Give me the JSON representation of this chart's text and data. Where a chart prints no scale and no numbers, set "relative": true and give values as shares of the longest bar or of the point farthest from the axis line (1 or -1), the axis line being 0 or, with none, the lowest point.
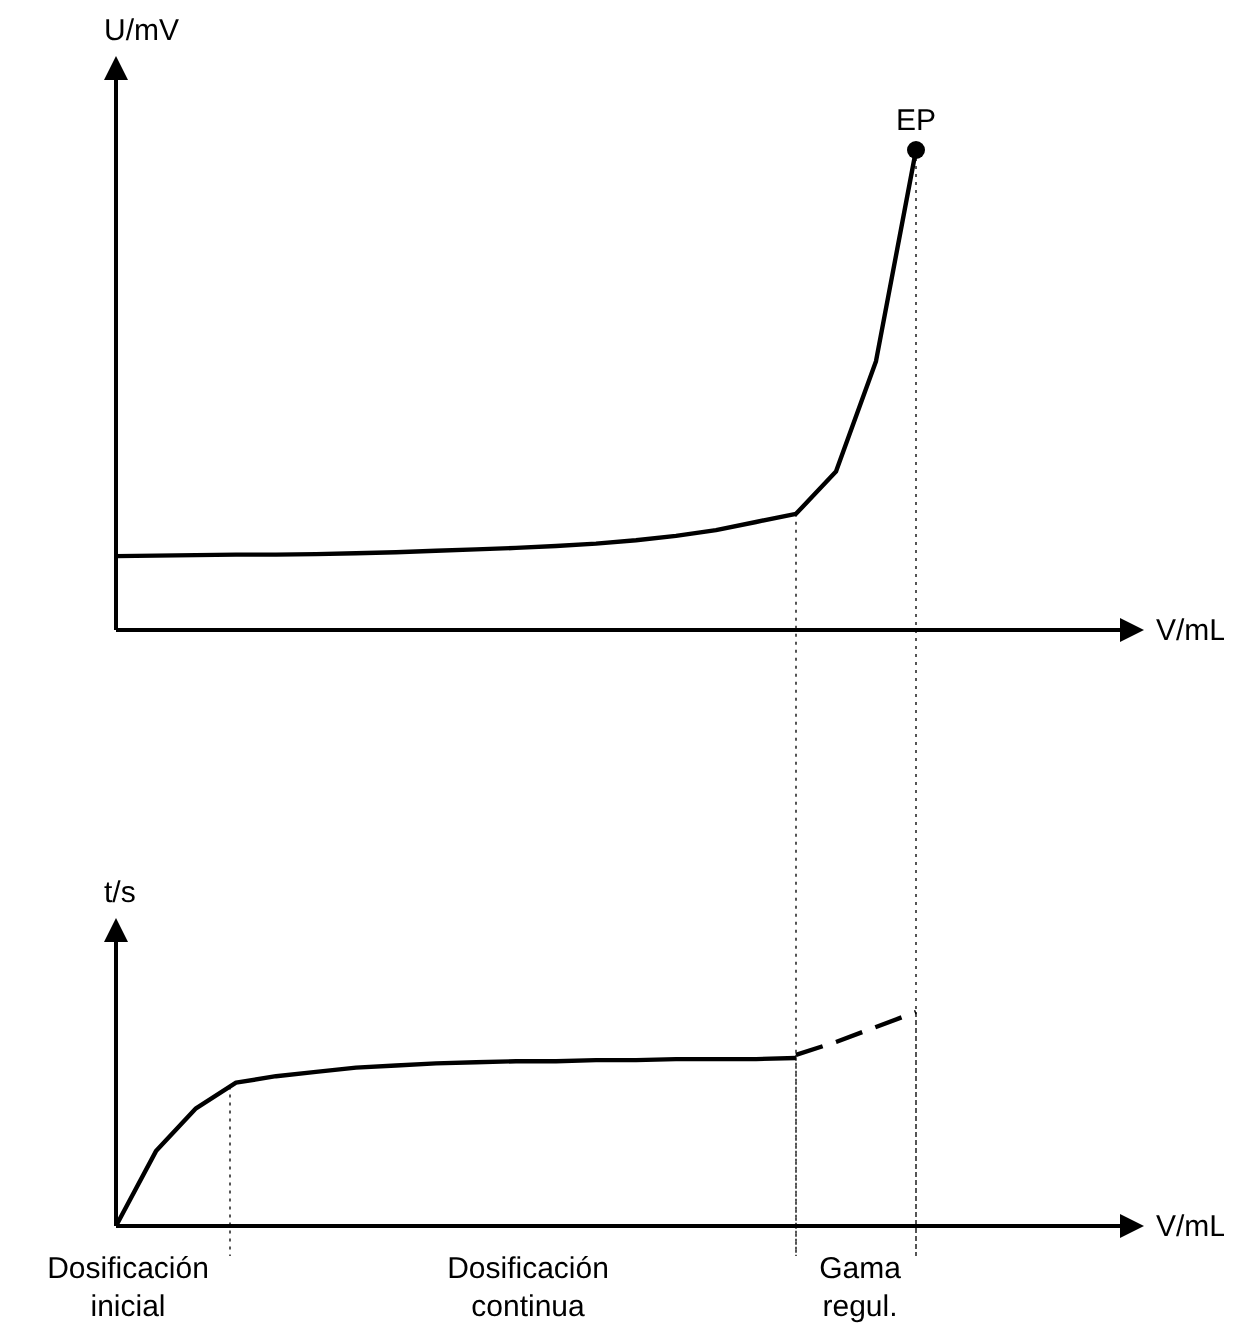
{
  "chart_data": [
    {
      "type": "line",
      "relative": true,
      "ylabel": "U/mV",
      "xlabel": "V/mL",
      "categories": [
        null,
        null,
        null,
        null,
        null,
        null,
        null,
        null,
        null,
        null,
        null,
        null,
        null,
        null,
        null,
        null,
        null,
        null,
        null,
        null,
        null,
        null,
        null,
        null,
        null
      ],
      "series": [
        {
          "color": "#000000",
          "line_style": "solid",
          "values": [
            0.154,
            0.155,
            0.156,
            0.157,
            0.157,
            0.158,
            0.16,
            0.162,
            0.165,
            0.168,
            0.171,
            0.175,
            0.18,
            0.187,
            0.196,
            0.208,
            0.225,
            0.242,
            0.33,
            0.56,
            1.0,
            null,
            null,
            null,
            null
          ]
        }
      ],
      "annotations": [
        "EP"
      ]
    },
    {
      "type": "line",
      "relative": true,
      "ylabel": "t/s",
      "xlabel": "V/mL",
      "categories": [
        null,
        null,
        null,
        null,
        null,
        null,
        null,
        null,
        null,
        null,
        null,
        null,
        null,
        null,
        null,
        null,
        null,
        null,
        null,
        null,
        null,
        null,
        null,
        null,
        null
      ],
      "series": [
        {
          "color": "#000000",
          "line_style": "solid",
          "values": [
            0,
            0.35,
            0.55,
            0.67,
            0.7,
            0.72,
            0.74,
            0.75,
            0.76,
            0.765,
            0.77,
            0.77,
            0.775,
            0.775,
            0.78,
            0.78,
            0.78,
            0.785,
            null,
            null,
            null,
            null,
            null,
            null,
            null
          ]
        },
        {
          "color": "#000000",
          "line_style": "dashed",
          "values": [
            null,
            null,
            null,
            null,
            null,
            null,
            null,
            null,
            null,
            null,
            null,
            null,
            null,
            null,
            null,
            null,
            null,
            0.8,
            0.86,
            0.93,
            1.0,
            null,
            null,
            null,
            null
          ]
        }
      ],
      "annotations": [
        "Dosificación inicial",
        "Dosificación continua",
        "Gama regul."
      ]
    }
  ]
}
